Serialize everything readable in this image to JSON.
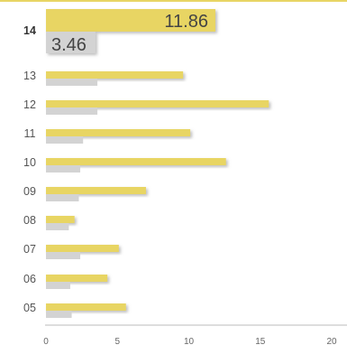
{
  "chart_data": {
    "type": "bar",
    "orientation": "horizontal",
    "categories": [
      "05",
      "06",
      "07",
      "08",
      "09",
      "10",
      "11",
      "12",
      "13",
      "14"
    ],
    "series": [
      {
        "color": "#e8d564",
        "values": [
          5.6,
          4.3,
          5.1,
          2.0,
          7.0,
          12.6,
          10.1,
          15.6,
          9.6,
          11.86
        ]
      },
      {
        "color": "#d3d3d3",
        "values": [
          1.8,
          1.7,
          2.4,
          1.6,
          2.3,
          2.4,
          2.6,
          3.6,
          3.6,
          3.46
        ]
      }
    ],
    "highlight": {
      "category": "14",
      "labels": [
        "11.86",
        "3.46"
      ]
    },
    "xlim": [
      0,
      20
    ],
    "x_ticks": [
      "0",
      "5",
      "10",
      "15",
      "20"
    ],
    "title": "",
    "xlabel": "",
    "ylabel": "",
    "grid": false,
    "colors": {
      "top_rule": "#e8d564",
      "axis": "#bbbbbb",
      "shadow": "#b0b0b0"
    }
  }
}
